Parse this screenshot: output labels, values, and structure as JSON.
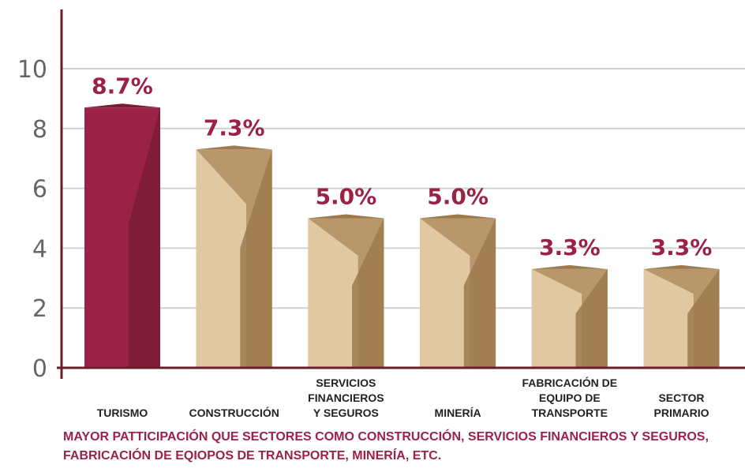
{
  "chart_data": {
    "type": "bar",
    "categories": [
      [
        "TURISMO"
      ],
      [
        "CONSTRUCCIÓN"
      ],
      [
        "SERVICIOS",
        "FINANCIEROS",
        "Y SEGUROS"
      ],
      [
        "MINERÍA"
      ],
      [
        "FABRICACIÓN DE",
        "EQUIPO DE",
        "TRANSPORTE"
      ],
      [
        "SECTOR",
        "PRIMARIO"
      ]
    ],
    "values": [
      8.7,
      7.3,
      5.0,
      5.0,
      3.3,
      3.3
    ],
    "value_labels": [
      "8.7%",
      "7.3%",
      "5.0%",
      "5.0%",
      "3.3%",
      "3.3%"
    ],
    "yticks": [
      "0",
      "2",
      "4",
      "6",
      "8",
      "10"
    ],
    "ylim": [
      0,
      12
    ],
    "grid": true,
    "highlight_index": 0,
    "colors": {
      "highlight": "#9b2247",
      "highlight_dark": "#7a1c34",
      "default": "#b8976a",
      "default_light": "#e3cda9",
      "default_dark": "#9c7a4e",
      "label": "#9b2247",
      "axis": "#6b1d2e",
      "grid": "#d0d0d0"
    }
  },
  "footnote": "MAYOR PATTICIPACIÓN QUE SECTORES COMO CONSTRUCCIÓN, SERVICIOS FINANCIEROS Y SEGUROS, FABRICACIÓN DE EQIOPOS DE TRANSPORTE, MINERÍA, ETC."
}
